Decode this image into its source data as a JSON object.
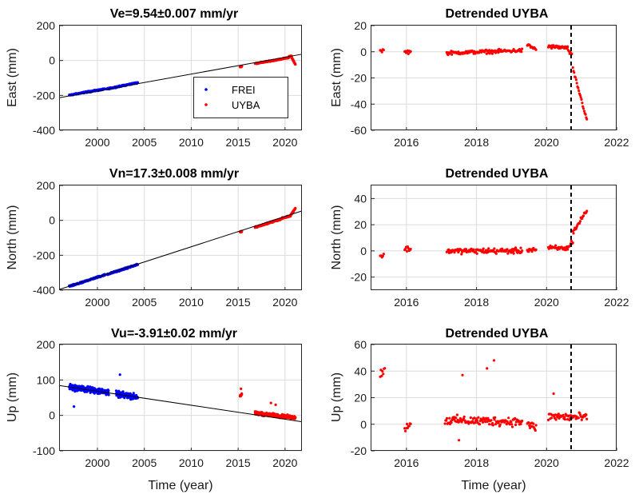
{
  "colors": {
    "FREI": "#0000ff",
    "UYBA": "#ff0000",
    "fit": "#000000",
    "event": "#000000"
  },
  "chart_data": [
    {
      "id": "east-left",
      "type": "scatter",
      "title": "Ve=9.54±0.007 mm/yr",
      "xlabel": "",
      "ylabel": "East (mm)",
      "xlim": [
        1996,
        2021.8
      ],
      "ylim": [
        -400,
        200
      ],
      "xticks": [
        2000,
        2005,
        2010,
        2015,
        2020
      ],
      "yticks": [
        -400,
        -200,
        0,
        200
      ],
      "legend": {
        "placement": "center-right",
        "entries": [
          "FREI",
          "UYBA"
        ]
      },
      "fit_line": {
        "x": [
          1996,
          2021.8
        ],
        "y": [
          -213,
          36
        ]
      },
      "series": [
        {
          "name": "FREI",
          "color_key": "FREI",
          "segments": [
            [
              1997.0,
              1998.6,
              -199,
              -183
            ],
            [
              1998.6,
              2000.8,
              -183,
              -164
            ],
            [
              2001.0,
              2004.3,
              -163,
              -127
            ]
          ],
          "jitter": 5,
          "outliers": []
        },
        {
          "name": "UYBA",
          "color_key": "UYBA",
          "segments": [
            [
              2015.2,
              2015.4,
              -36,
              -34
            ],
            [
              2016.8,
              2019.6,
              -18,
              8
            ],
            [
              2019.7,
              2020.4,
              10,
              17
            ],
            [
              2020.4,
              2020.7,
              22,
              25
            ],
            [
              2020.7,
              2021.1,
              17,
              -22
            ]
          ],
          "jitter": 4,
          "outliers": []
        }
      ]
    },
    {
      "id": "east-right",
      "type": "scatter",
      "title": "Detrended UYBA",
      "xlabel": "",
      "ylabel": "East (mm)",
      "xlim": [
        2015,
        2022
      ],
      "ylim": [
        -60,
        20
      ],
      "xticks": [
        2016,
        2018,
        2020,
        2022
      ],
      "yticks": [
        -60,
        -40,
        -20,
        0,
        20
      ],
      "event_line_x": 2020.7,
      "series": [
        {
          "name": "UYBA",
          "color_key": "UYBA",
          "segments": [
            [
              2015.25,
              2015.35,
              1,
              1
            ],
            [
              2015.95,
              2016.12,
              0,
              0
            ],
            [
              2017.15,
              2019.3,
              -1,
              1
            ],
            [
              2019.45,
              2019.7,
              5,
              2
            ],
            [
              2020.05,
              2020.6,
              4,
              3
            ],
            [
              2020.6,
              2020.72,
              2,
              -3
            ],
            [
              2020.75,
              2021.15,
              -13,
              -52
            ]
          ],
          "jitter": 2,
          "outliers": []
        }
      ]
    },
    {
      "id": "north-left",
      "type": "scatter",
      "title": "Vn=17.3±0.008 mm/yr",
      "xlabel": "",
      "ylabel": "North (mm)",
      "xlim": [
        1996,
        2021.8
      ],
      "ylim": [
        -400,
        200
      ],
      "xticks": [
        2000,
        2005,
        2010,
        2015,
        2020
      ],
      "yticks": [
        -400,
        -200,
        0,
        200
      ],
      "fit_line": {
        "x": [
          1996,
          2021.8
        ],
        "y": [
          -395,
          54
        ]
      },
      "series": [
        {
          "name": "FREI",
          "color_key": "FREI",
          "segments": [
            [
              1997.0,
              1998.6,
              -378,
              -352
            ],
            [
              1998.6,
              2000.8,
              -350,
              -312
            ],
            [
              2001.0,
              2004.3,
              -310,
              -253
            ]
          ],
          "jitter": 6,
          "outliers": []
        },
        {
          "name": "UYBA",
          "color_key": "UYBA",
          "segments": [
            [
              2015.2,
              2015.4,
              -66,
              -63
            ],
            [
              2016.8,
              2019.6,
              -40,
              8
            ],
            [
              2019.7,
              2020.6,
              12,
              27
            ],
            [
              2020.6,
              2021.1,
              30,
              70
            ]
          ],
          "jitter": 5,
          "outliers": []
        }
      ]
    },
    {
      "id": "north-right",
      "type": "scatter",
      "title": "Detrended UYBA",
      "xlabel": "",
      "ylabel": "North (mm)",
      "xlim": [
        2015,
        2022
      ],
      "ylim": [
        -30,
        50
      ],
      "xticks": [
        2016,
        2018,
        2020,
        2022
      ],
      "yticks": [
        -20,
        0,
        20,
        40
      ],
      "event_line_x": 2020.7,
      "series": [
        {
          "name": "UYBA",
          "color_key": "UYBA",
          "segments": [
            [
              2015.25,
              2015.35,
              -4,
              -4
            ],
            [
              2015.95,
              2016.12,
              2,
              1
            ],
            [
              2017.15,
              2019.3,
              0,
              0
            ],
            [
              2019.45,
              2019.7,
              1,
              1
            ],
            [
              2020.05,
              2020.6,
              2,
              2
            ],
            [
              2020.6,
              2020.75,
              2,
              8
            ],
            [
              2020.75,
              2021.15,
              14,
              31
            ]
          ],
          "jitter": 3,
          "outliers": []
        }
      ]
    },
    {
      "id": "up-left",
      "type": "scatter",
      "title": "Vu=-3.91±0.02 mm/yr",
      "xlabel": "Time (year)",
      "ylabel": "Up (mm)",
      "xlim": [
        1996,
        2021.8
      ],
      "ylim": [
        -100,
        200
      ],
      "xticks": [
        2000,
        2005,
        2010,
        2015,
        2020
      ],
      "yticks": [
        -100,
        0,
        100,
        200
      ],
      "fit_line": {
        "x": [
          1996,
          2021.8
        ],
        "y": [
          84,
          -18
        ]
      },
      "series": [
        {
          "name": "FREI",
          "color_key": "FREI",
          "segments": [
            [
              1997.0,
              2001.2,
              80,
              65
            ],
            [
              2002.0,
              2004.3,
              60,
              52
            ]
          ],
          "jitter": 12,
          "outliers": [
            [
              2002.4,
              115
            ],
            [
              1997.5,
              25
            ]
          ]
        },
        {
          "name": "UYBA",
          "color_key": "UYBA",
          "segments": [
            [
              2015.2,
              2015.4,
              55,
              60
            ],
            [
              2016.8,
              2021.1,
              6,
              -6
            ]
          ],
          "jitter": 7,
          "outliers": [
            [
              2015.3,
              75
            ],
            [
              2018.5,
              35
            ],
            [
              2019.0,
              30
            ]
          ]
        }
      ]
    },
    {
      "id": "up-right",
      "type": "scatter",
      "title": "Detrended UYBA",
      "xlabel": "Time (year)",
      "ylabel": "Up (mm)",
      "xlim": [
        2015,
        2022
      ],
      "ylim": [
        -20,
        60
      ],
      "xticks": [
        2016,
        2018,
        2020,
        2022
      ],
      "yticks": [
        -20,
        0,
        20,
        40,
        60
      ],
      "event_line_x": 2020.7,
      "series": [
        {
          "name": "UYBA",
          "color_key": "UYBA",
          "segments": [
            [
              2015.25,
              2015.38,
              38,
              40
            ],
            [
              2015.95,
              2016.12,
              -2,
              0
            ],
            [
              2017.1,
              2019.3,
              3,
              2
            ],
            [
              2019.45,
              2019.7,
              0,
              -3
            ],
            [
              2020.05,
              2021.15,
              6,
              5
            ]
          ],
          "jitter": 5,
          "outliers": [
            [
              2017.6,
              37
            ],
            [
              2018.3,
              42
            ],
            [
              2018.5,
              48
            ],
            [
              2017.5,
              -12
            ],
            [
              2020.2,
              23
            ]
          ]
        }
      ]
    }
  ]
}
